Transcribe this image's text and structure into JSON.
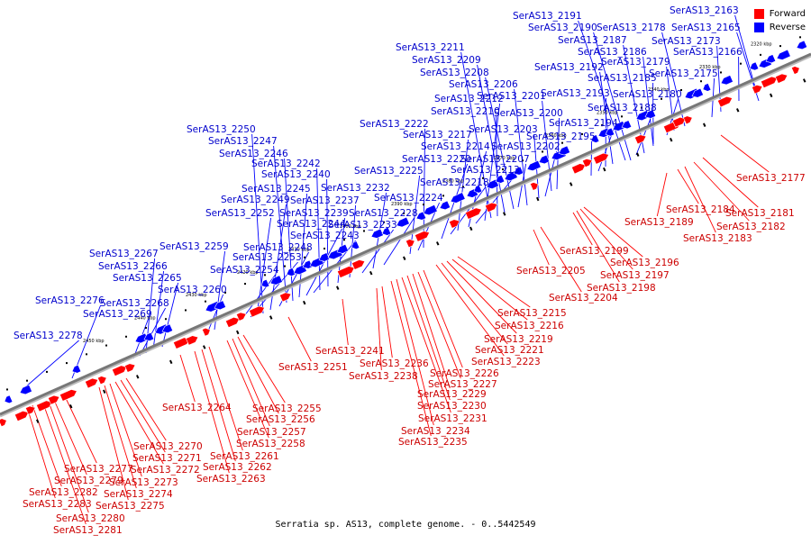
{
  "colors": {
    "forward": "#ff0000",
    "reverse": "#0000ff",
    "backbone": "#777777",
    "forward_label": "#cc0000",
    "reverse_label": "#0000cc"
  },
  "legend": {
    "forward": "Forward",
    "reverse": "Reverse"
  },
  "caption": "Serratia sp. AS13, complete genome. - 0..5442549",
  "scale_ticks": [
    "2320 kbp",
    "2330 kbp",
    "2340 kbp",
    "2350 kbp",
    "2360 kbp",
    "2370 kbp",
    "2380 kbp",
    "2390 kbp",
    "2400 kbp",
    "2410 kbp",
    "2420 kbp",
    "2430 kbp",
    "2440 kbp",
    "2450 kbp"
  ],
  "reverse_genes": [
    "SerAS13_2163",
    "SerAS13_2165",
    "SerAS13_2166",
    "SerAS13_2173",
    "SerAS13_2175",
    "SerAS13_2178",
    "SerAS13_2179",
    "SerAS13_2180",
    "SerAS13_2185",
    "SerAS13_2186",
    "SerAS13_2187",
    "SerAS13_2188",
    "SerAS13_2190",
    "SerAS13_2191",
    "SerAS13_2192",
    "SerAS13_2193",
    "SerAS13_2194",
    "SerAS13_2195",
    "SerAS13_2200",
    "SerAS13_2201",
    "SerAS13_2202",
    "SerAS13_2203",
    "SerAS13_2206",
    "SerAS13_2207",
    "SerAS13_2208",
    "SerAS13_2209",
    "SerAS13_2210",
    "SerAS13_2211",
    "SerAS13_2212",
    "SerAS13_2213",
    "SerAS13_2214",
    "SerAS13_2217",
    "SerAS13_2218",
    "SerAS13_2220",
    "SerAS13_2222",
    "SerAS13_2224",
    "SerAS13_2225",
    "SerAS13_2228",
    "SerAS13_2232",
    "SerAS13_2233",
    "SerAS13_2237",
    "SerAS13_2239",
    "SerAS13_2240",
    "SerAS13_2242",
    "SerAS13_2243",
    "SerAS13_2244",
    "SerAS13_2245",
    "SerAS13_2246",
    "SerAS13_2247",
    "SerAS13_2248",
    "SerAS13_2249",
    "SerAS13_2250",
    "SerAS13_2252",
    "SerAS13_2253",
    "SerAS13_2254",
    "SerAS13_2259",
    "SerAS13_2260",
    "SerAS13_2265",
    "SerAS13_2266",
    "SerAS13_2267",
    "SerAS13_2268",
    "SerAS13_2269",
    "SerAS13_2276",
    "SerAS13_2278"
  ],
  "forward_genes": [
    "SerAS13_2177",
    "SerAS13_2181",
    "SerAS13_2182",
    "SerAS13_2183",
    "SerAS13_2184",
    "SerAS13_2189",
    "SerAS13_2196",
    "SerAS13_2197",
    "SerAS13_2198",
    "SerAS13_2199",
    "SerAS13_2204",
    "SerAS13_2205",
    "SerAS13_2215",
    "SerAS13_2216",
    "SerAS13_2219",
    "SerAS13_2221",
    "SerAS13_2223",
    "SerAS13_2226",
    "SerAS13_2227",
    "SerAS13_2229",
    "SerAS13_2230",
    "SerAS13_2231",
    "SerAS13_2234",
    "SerAS13_2235",
    "SerAS13_2236",
    "SerAS13_2238",
    "SerAS13_2241",
    "SerAS13_2251",
    "SerAS13_2255",
    "SerAS13_2256",
    "SerAS13_2257",
    "SerAS13_2258",
    "SerAS13_2261",
    "SerAS13_2262",
    "SerAS13_2263",
    "SerAS13_2264",
    "SerAS13_2270",
    "SerAS13_2271",
    "SerAS13_2272",
    "SerAS13_2273",
    "SerAS13_2274",
    "SerAS13_2275",
    "SerAS13_2277",
    "SerAS13_2279",
    "SerAS13_2280",
    "SerAS13_2281",
    "SerAS13_2282",
    "SerAS13_2283"
  ]
}
